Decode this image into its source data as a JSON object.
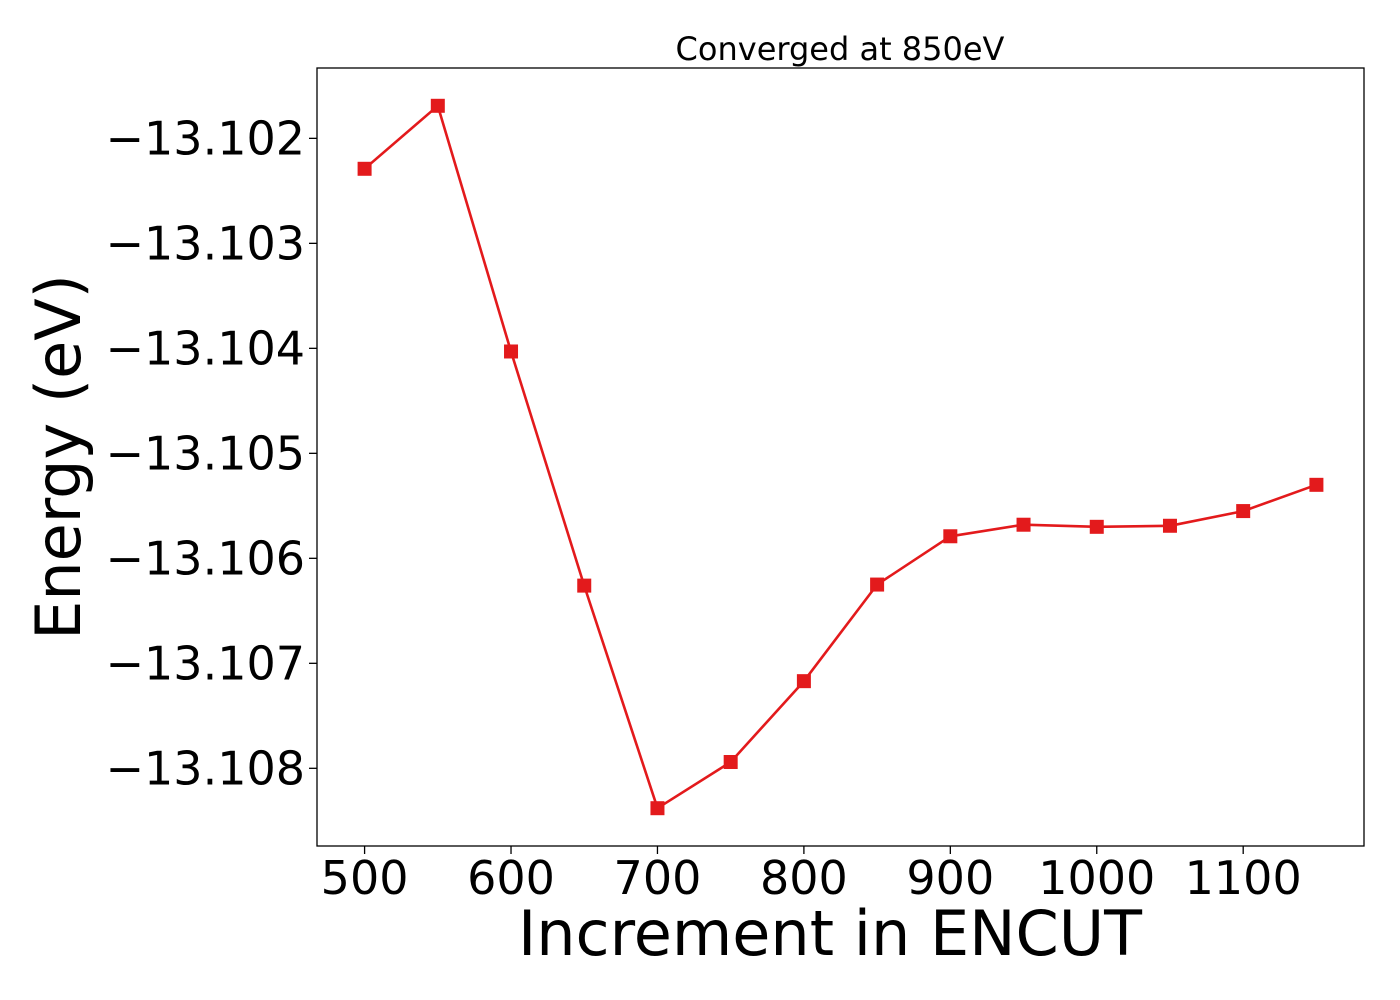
{
  "chart_data": {
    "type": "line",
    "title": "Converged at 850eV",
    "xlabel": "Increment in ENCUT",
    "ylabel": "Energy (eV)",
    "xlim": [
      467.5,
      1182.5
    ],
    "ylim": [
      -13.10874,
      -13.10133
    ],
    "xticks": [
      500,
      600,
      700,
      800,
      900,
      1000,
      1100
    ],
    "xtick_labels": [
      "500",
      "600",
      "700",
      "800",
      "900",
      "1000",
      "1100"
    ],
    "yticks": [
      -13.102,
      -13.103,
      -13.104,
      -13.105,
      -13.106,
      -13.107,
      -13.108
    ],
    "ytick_labels": [
      "−13.102",
      "−13.103",
      "−13.104",
      "−13.105",
      "−13.106",
      "−13.107",
      "−13.108"
    ],
    "grid": false,
    "legend": "none",
    "series": [
      {
        "color": "#e31a1c",
        "marker": "square",
        "x": [
          500,
          550,
          600,
          650,
          700,
          750,
          800,
          850,
          900,
          950,
          1000,
          1050,
          1100,
          1150
        ],
        "y": [
          -13.10229,
          -13.10169,
          -13.10403,
          -13.10626,
          -13.10838,
          -13.10794,
          -13.10717,
          -13.10625,
          -13.10579,
          -13.10568,
          -13.1057,
          -13.10569,
          -13.10555,
          -13.1053
        ]
      }
    ]
  }
}
